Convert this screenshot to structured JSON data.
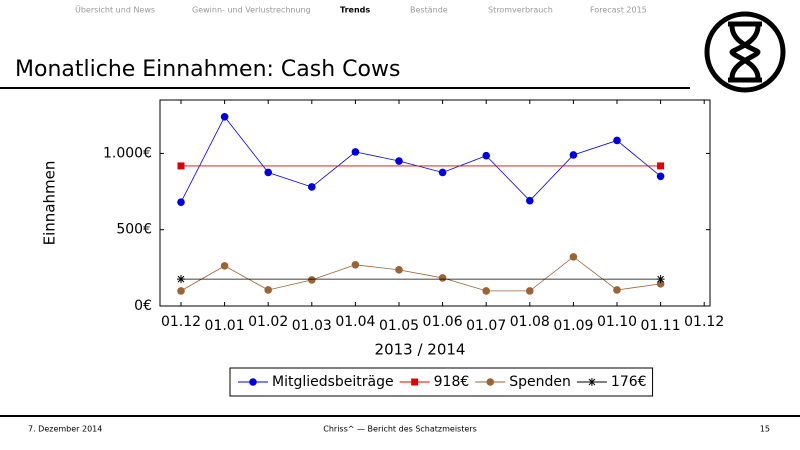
{
  "nav": [
    "Übersicht und News",
    "Gewinn- und Verlustrechnung",
    "Trends",
    "Bestände",
    "Stromverbrauch",
    "Forecast 2015"
  ],
  "nav_active": 2,
  "slide_title": "Monatliche Einnahmen: Cash Cows",
  "footer": {
    "date": "7. Dezember 2014",
    "center": "Chriss^ — Bericht des Schatzmeisters",
    "page": "15"
  },
  "chart_data": {
    "type": "line",
    "xlabel": "2013 / 2014",
    "ylabel": "Einnahmen",
    "categories": [
      "01.12",
      "01.01",
      "01.02",
      "01.03",
      "01.04",
      "01.05",
      "01.06",
      "01.07",
      "01.08",
      "01.09",
      "01.10",
      "01.11",
      "01.12"
    ],
    "series": [
      {
        "name": "Mitgliedsbeiträge",
        "color": "#0000dd",
        "marker": "circle",
        "values": [
          680,
          1240,
          875,
          780,
          1010,
          950,
          875,
          985,
          690,
          990,
          1085,
          850,
          null
        ]
      },
      {
        "name": "918€",
        "color": "#dd0000",
        "marker": "square",
        "marker_ends": true,
        "values": [
          918,
          918,
          918,
          918,
          918,
          918,
          918,
          918,
          918,
          918,
          918,
          918,
          null
        ]
      },
      {
        "name": "Spenden",
        "color": "#9a6436",
        "marker": "circle",
        "values": [
          99,
          263,
          105,
          171,
          270,
          237,
          184,
          99,
          99,
          322,
          105,
          145,
          null
        ]
      },
      {
        "name": "176€",
        "color": "#000000",
        "marker": "star",
        "marker_ends": true,
        "values": [
          176,
          176,
          176,
          176,
          176,
          176,
          176,
          176,
          176,
          176,
          176,
          176,
          null
        ]
      }
    ],
    "ylim": [
      0,
      1350
    ],
    "yticks": [
      {
        "value": 0,
        "label": "0€"
      },
      {
        "value": 500,
        "label": "500€"
      },
      {
        "value": 1000,
        "label": "1.000€"
      }
    ],
    "legend": "bottom"
  }
}
